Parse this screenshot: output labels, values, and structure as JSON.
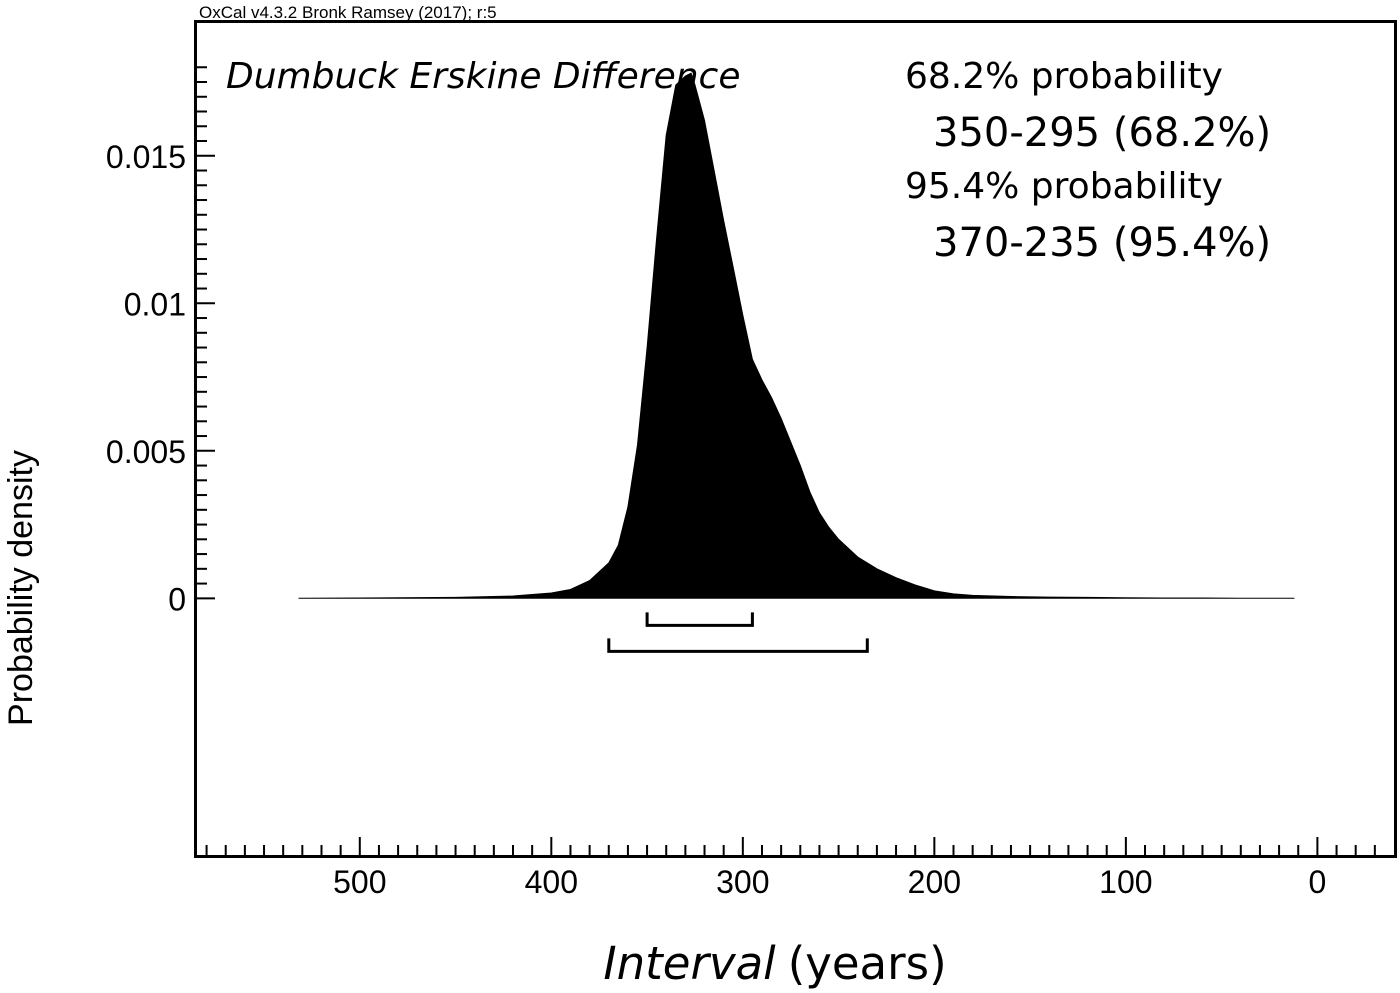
{
  "header_credit": "OxCal v4.3.2 Bronk Ramsey (2017); r:5",
  "chart_data": {
    "type": "area",
    "title": "Dumbuck Erskine Difference",
    "xlabel_italic": "Interval",
    "xlabel_rest": "(years)",
    "ylabel": "Probability density",
    "x_reversed": true,
    "xlim": [
      585,
      -40
    ],
    "ylim": [
      -0.0087,
      0.0195
    ],
    "x_ticks": [
      500,
      400,
      300,
      200,
      100,
      0
    ],
    "x_tick_labels": [
      "500",
      "400",
      "300",
      "200",
      "100",
      "0"
    ],
    "y_ticks": [
      0,
      0.005,
      0.01,
      0.015
    ],
    "y_tick_labels": [
      "0",
      "0.005",
      "0.01",
      "0.015"
    ],
    "probability_lines": [
      "68.2% probability",
      "350-295 (68.2%)",
      "95.4% probability",
      "370-235 (95.4%)"
    ],
    "ranges": [
      {
        "level": "68.2%",
        "from": 350,
        "to": 295
      },
      {
        "level": "95.4%",
        "from": 370,
        "to": 235
      }
    ],
    "series": [
      {
        "x": [
          532,
          500,
          450,
          420,
          400,
          390,
          380,
          370,
          365,
          360,
          355,
          350,
          345,
          340,
          335,
          330,
          327,
          325,
          320,
          315,
          310,
          305,
          300,
          295,
          290,
          285,
          280,
          275,
          270,
          265,
          260,
          255,
          250,
          240,
          230,
          220,
          210,
          200,
          190,
          180,
          160,
          140,
          120,
          100,
          80,
          60,
          40,
          12
        ],
        "values": [
          0,
          1e-05,
          3e-05,
          8e-05,
          0.00018,
          0.0003,
          0.0006,
          0.0012,
          0.0018,
          0.0031,
          0.0052,
          0.0085,
          0.0122,
          0.0157,
          0.0174,
          0.0177,
          0.0178,
          0.0174,
          0.0162,
          0.0145,
          0.0128,
          0.0112,
          0.0096,
          0.0081,
          0.0074,
          0.0068,
          0.0061,
          0.0053,
          0.0045,
          0.0036,
          0.0029,
          0.0024,
          0.002,
          0.0014,
          0.001,
          0.0007,
          0.00045,
          0.00025,
          0.00015,
          0.0001,
          6e-05,
          4e-05,
          3e-05,
          2e-05,
          1e-05,
          1e-05,
          0,
          0
        ]
      }
    ]
  }
}
